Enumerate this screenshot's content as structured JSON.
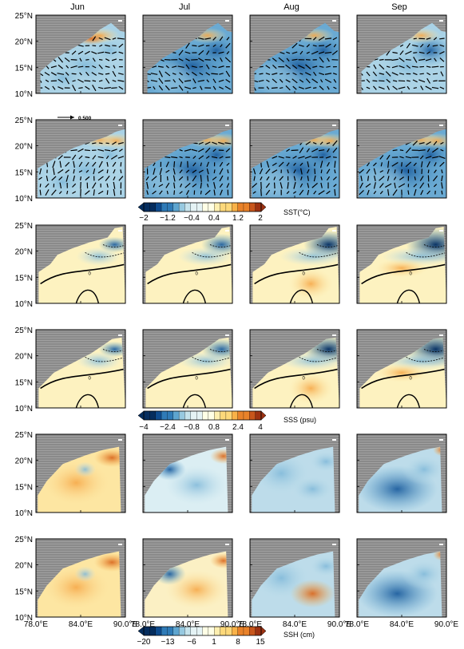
{
  "figure": {
    "columns": [
      "Jun",
      "Jul",
      "Aug",
      "Sep"
    ],
    "lat_ticks": [
      "25°N",
      "20°N",
      "15°N",
      "10°N"
    ],
    "lon_ticks": [
      "78.0°E",
      "84.0°E",
      "90.0°E"
    ],
    "vector_reference": "0.500",
    "colorbars": [
      {
        "id": "sst",
        "label": "SST(°C)",
        "tick_labels": [
          "−2",
          "−1.2",
          "−0.4",
          "0.4",
          "1.2",
          "2"
        ],
        "min": -2,
        "max": 2,
        "steps": 20
      },
      {
        "id": "sss",
        "label": "SSS (psu)",
        "tick_labels": [
          "−4",
          "−2.4",
          "−0.8",
          "0.8",
          "2.4",
          "4"
        ],
        "min": -4,
        "max": 4,
        "steps": 20
      },
      {
        "id": "ssh",
        "label": "SSH (cm)",
        "tick_labels": [
          "−20",
          "−13",
          "−6",
          "1",
          "8",
          "15"
        ],
        "min": -20,
        "max": 20,
        "steps": 20
      }
    ]
  },
  "colors": {
    "land": "#8a8a8a",
    "land_stripe": "#a4a4a4",
    "warm": [
      "#ffffe6",
      "#feefb0",
      "#fdd87a",
      "#f9b248",
      "#e9822a",
      "#c8561c",
      "#9d3212"
    ],
    "cool": [
      "#ffffe6",
      "#e5f3f5",
      "#c6e3ec",
      "#97c9e0",
      "#5ea5cf",
      "#2f7bb7",
      "#0e4b8e",
      "#052d5e"
    ]
  },
  "chart_data": [
    {
      "type": "heatmap",
      "variable": "SST",
      "row": 1,
      "months": [
        "Jun",
        "Jul",
        "Aug",
        "Sep"
      ],
      "dominant_anomaly": [
        -0.4,
        -1.2,
        -1.2,
        -0.8
      ],
      "vectors": true,
      "x_range": [
        "78.0°E",
        "90.0°E"
      ],
      "y_range": [
        "10°N",
        "25°N"
      ]
    },
    {
      "type": "heatmap",
      "variable": "SST",
      "row": 2,
      "months": [
        "Jun",
        "Jul",
        "Aug",
        "Sep"
      ],
      "dominant_anomaly": [
        -0.8,
        -1.2,
        -1.2,
        -1.2
      ],
      "vectors": true,
      "x_range": [
        "78.0°E",
        "90.0°E"
      ],
      "y_range": [
        "10°N",
        "25°N"
      ]
    },
    {
      "type": "heatmap",
      "variable": "SSS",
      "row": 3,
      "months": [
        "Jun",
        "Jul",
        "Aug",
        "Sep"
      ],
      "dominant_anomaly": [
        0.4,
        0.4,
        0.4,
        0.4
      ],
      "contour_label": "0",
      "x_range": [
        "78.0°E",
        "90.0°E"
      ],
      "y_range": [
        "10°N",
        "25°N"
      ]
    },
    {
      "type": "heatmap",
      "variable": "SSS",
      "row": 4,
      "months": [
        "Jun",
        "Jul",
        "Aug",
        "Sep"
      ],
      "dominant_anomaly": [
        0.4,
        0.4,
        0.4,
        0.4
      ],
      "contour_label": "0",
      "x_range": [
        "78.0°E",
        "90.0°E"
      ],
      "y_range": [
        "10°N",
        "25°N"
      ]
    },
    {
      "type": "heatmap",
      "variable": "SSH",
      "row": 5,
      "months": [
        "Jun",
        "Jul",
        "Aug",
        "Sep"
      ],
      "dominant_anomaly": [
        4,
        -3,
        -4,
        -4
      ],
      "x_range": [
        "78.0°E",
        "90.0°E"
      ],
      "y_range": [
        "10°N",
        "25°N"
      ]
    },
    {
      "type": "heatmap",
      "variable": "SSH",
      "row": 6,
      "months": [
        "Jun",
        "Jul",
        "Aug",
        "Sep"
      ],
      "dominant_anomaly": [
        5,
        1,
        -4,
        -6
      ],
      "x_range": [
        "78.0°E",
        "90.0°E"
      ],
      "y_range": [
        "10°N",
        "25°N"
      ]
    }
  ]
}
